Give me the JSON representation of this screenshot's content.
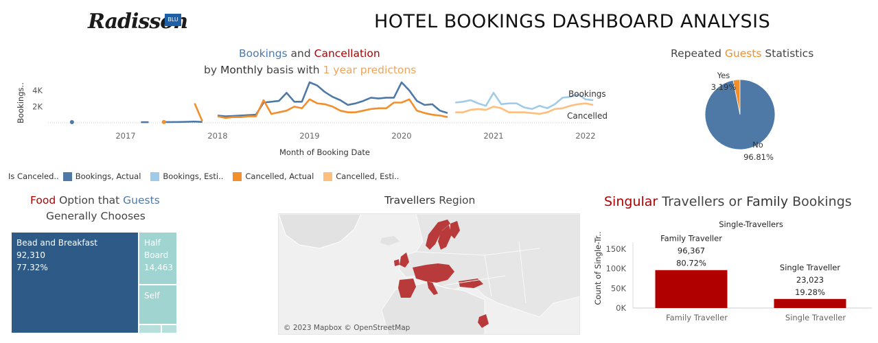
{
  "header": {
    "logo_text": "Radisson",
    "logo_badge": "BLU",
    "title": "HOTEL BOOKINGS DASHBOARD ANALYSIS"
  },
  "colors": {
    "bookings_actual": "#4e79a7",
    "bookings_estimate": "#a0cbe8",
    "cancelled_actual": "#f28e2b",
    "cancelled_estimate": "#ffbe7d",
    "pie_no": "#4e79a7",
    "pie_yes": "#f28e2b",
    "bar": "#b00000",
    "treemap_dark": "#2e5a87",
    "treemap_light": "#9fd4d0",
    "map_country": "#b83a3a"
  },
  "line_section": {
    "title_part1": "Bookings",
    "title_part2": " and ",
    "title_part3": "Cancellation",
    "subtitle_part1": "by ",
    "subtitle_part2": "Monthly",
    "subtitle_part3": " basis with ",
    "subtitle_part4": "1 year predictons",
    "legend_title": "Is Canceled..",
    "legend": [
      "Bookings, Actual",
      "Bookings, Esti..",
      "Cancelled, Actual",
      "Cancelled, Esti.."
    ]
  },
  "pie_section": {
    "title_part1": "Repeated ",
    "title_part2": "Guests",
    "title_part3": " Statistics"
  },
  "treemap_section": {
    "title_part1": "Food",
    "title_part2": " Option that ",
    "title_part3": "Guests",
    "title_line2": "Generally Chooses",
    "cells": [
      {
        "label": "Bead and Breakfast",
        "value": "92,310",
        "pct": "77.32%"
      },
      {
        "label": "Half Board",
        "value": "14,463",
        "pct": ""
      },
      {
        "label": "Self",
        "value": "",
        "pct": ""
      }
    ]
  },
  "map_section": {
    "title_part1": "Travellers",
    "title_part2": " Region",
    "attribution": "© 2023 Mapbox © OpenStreetMap"
  },
  "bar_section": {
    "title_part1": "Singular",
    "title_part2": " Travellers or ",
    "title_part3": "Family",
    "title_part4": " Bookings"
  },
  "chart_data": [
    {
      "type": "line",
      "xlabel": "Month of Booking Date",
      "ylabel": "Bookings..",
      "x_ticks": [
        "2017",
        "2018",
        "2019",
        "2020",
        "2021",
        "2022"
      ],
      "y_ticks": [
        "2K",
        "4K"
      ],
      "ylim": [
        0,
        5000
      ],
      "end_labels": [
        "Bookings",
        "Cancelled"
      ],
      "series": [
        {
          "name": "Bookings, Actual",
          "segments": [
            [
              [
                "2016-06",
                80
              ]
            ],
            [
              [
                "2017-03",
                80
              ],
              [
                "2017-04",
                80
              ]
            ],
            [
              [
                "2017-06",
                90
              ],
              [
                "2017-07",
                90
              ],
              [
                "2017-08",
                100
              ],
              [
                "2017-09",
                120
              ],
              [
                "2017-10",
                150
              ],
              [
                "2017-11",
                100
              ]
            ],
            [
              [
                "2018-01",
                900
              ],
              [
                "2018-02",
                800
              ],
              [
                "2018-03",
                850
              ],
              [
                "2018-04",
                900
              ],
              [
                "2018-05",
                950
              ],
              [
                "2018-06",
                1000
              ],
              [
                "2018-07",
                2500
              ],
              [
                "2018-08",
                2600
              ],
              [
                "2018-09",
                2700
              ],
              [
                "2018-10",
                3700
              ],
              [
                "2018-11",
                2600
              ],
              [
                "2018-12",
                2600
              ],
              [
                "2019-01",
                5000
              ],
              [
                "2019-02",
                4600
              ],
              [
                "2019-03",
                3800
              ],
              [
                "2019-04",
                3200
              ],
              [
                "2019-05",
                2800
              ],
              [
                "2019-06",
                2200
              ],
              [
                "2019-07",
                2400
              ],
              [
                "2019-08",
                2700
              ],
              [
                "2019-09",
                3100
              ],
              [
                "2019-10",
                3000
              ],
              [
                "2019-11",
                3100
              ],
              [
                "2019-12",
                3100
              ],
              [
                "2020-01",
                5000
              ],
              [
                "2020-02",
                4000
              ],
              [
                "2020-03",
                2700
              ],
              [
                "2020-04",
                2200
              ],
              [
                "2020-05",
                2300
              ],
              [
                "2020-06",
                1500
              ],
              [
                "2020-07",
                1200
              ]
            ]
          ]
        },
        {
          "name": "Bookings, Esti..",
          "segments": [
            [
              [
                "2020-08",
                2500
              ],
              [
                "2020-09",
                2600
              ],
              [
                "2020-10",
                2800
              ],
              [
                "2020-11",
                2400
              ],
              [
                "2020-12",
                2100
              ],
              [
                "2021-01",
                3700
              ],
              [
                "2021-02",
                2300
              ],
              [
                "2021-03",
                2400
              ],
              [
                "2021-04",
                2400
              ],
              [
                "2021-05",
                1900
              ],
              [
                "2021-06",
                1700
              ],
              [
                "2021-07",
                2100
              ],
              [
                "2021-08",
                1800
              ],
              [
                "2021-09",
                2300
              ],
              [
                "2021-10",
                3100
              ],
              [
                "2021-11",
                3200
              ],
              [
                "2021-12",
                3500
              ],
              [
                "2022-01",
                2900
              ],
              [
                "2022-02",
                2800
              ]
            ]
          ]
        },
        {
          "name": "Cancelled, Actual",
          "segments": [
            [
              [
                "2017-06",
                100
              ]
            ],
            [
              [
                "2017-10",
                2400
              ],
              [
                "2017-11",
                200
              ]
            ],
            [
              [
                "2018-01",
                800
              ],
              [
                "2018-02",
                600
              ],
              [
                "2018-03",
                700
              ],
              [
                "2018-04",
                700
              ],
              [
                "2018-05",
                800
              ],
              [
                "2018-06",
                800
              ],
              [
                "2018-07",
                2800
              ],
              [
                "2018-08",
                1100
              ],
              [
                "2018-09",
                1300
              ],
              [
                "2018-10",
                1500
              ],
              [
                "2018-11",
                2000
              ],
              [
                "2018-12",
                1800
              ],
              [
                "2019-01",
                2900
              ],
              [
                "2019-02",
                2400
              ],
              [
                "2019-03",
                2300
              ],
              [
                "2019-04",
                2000
              ],
              [
                "2019-05",
                1500
              ],
              [
                "2019-06",
                1300
              ],
              [
                "2019-07",
                1300
              ],
              [
                "2019-08",
                1500
              ],
              [
                "2019-09",
                1700
              ],
              [
                "2019-10",
                1800
              ],
              [
                "2019-11",
                1800
              ],
              [
                "2019-12",
                2500
              ],
              [
                "2020-01",
                2500
              ],
              [
                "2020-02",
                2900
              ],
              [
                "2020-03",
                1500
              ],
              [
                "2020-04",
                1200
              ],
              [
                "2020-05",
                1000
              ],
              [
                "2020-06",
                900
              ],
              [
                "2020-07",
                700
              ]
            ]
          ]
        },
        {
          "name": "Cancelled, Esti..",
          "segments": [
            [
              [
                "2020-08",
                1300
              ],
              [
                "2020-09",
                1300
              ],
              [
                "2020-10",
                1600
              ],
              [
                "2020-11",
                1700
              ],
              [
                "2020-12",
                1600
              ],
              [
                "2021-01",
                2000
              ],
              [
                "2021-02",
                1800
              ],
              [
                "2021-03",
                1300
              ],
              [
                "2021-04",
                1300
              ],
              [
                "2021-05",
                1300
              ],
              [
                "2021-06",
                1200
              ],
              [
                "2021-07",
                1100
              ],
              [
                "2021-08",
                1300
              ],
              [
                "2021-09",
                1700
              ],
              [
                "2021-10",
                1800
              ],
              [
                "2021-11",
                2100
              ],
              [
                "2021-12",
                2300
              ],
              [
                "2022-01",
                2400
              ],
              [
                "2022-02",
                2200
              ]
            ]
          ]
        }
      ]
    },
    {
      "type": "pie",
      "slices": [
        {
          "label": "No",
          "value": 96.81,
          "display": "96.81%"
        },
        {
          "label": "Yes",
          "value": 3.19,
          "display": "3.19%"
        }
      ]
    },
    {
      "type": "treemap",
      "items": [
        {
          "label": "Bead and Breakfast",
          "value": 92310
        },
        {
          "label": "Half Board",
          "value": 14463
        },
        {
          "label": "Self",
          "value": null
        }
      ]
    },
    {
      "type": "bar",
      "title": "Single-Travellers",
      "ylabel": "Count of Single-Tr..",
      "categories": [
        "Family Traveller",
        "Single Traveller"
      ],
      "values": [
        96367,
        23023
      ],
      "value_labels": [
        "96,367",
        "23,023"
      ],
      "pct_labels": [
        "80.72%",
        "19.28%"
      ],
      "y_ticks": [
        "0K",
        "50K",
        "100K",
        "150K"
      ],
      "ylim": [
        0,
        165000
      ]
    }
  ]
}
